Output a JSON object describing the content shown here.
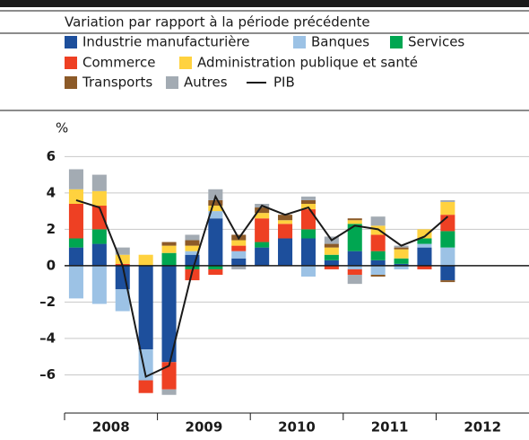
{
  "chart_data": {
    "type": "bar",
    "subtitle": "Variation par rapport à la période précédente",
    "y_unit": "%",
    "stacked": true,
    "categories": [
      null,
      null,
      null,
      null,
      null,
      null,
      null,
      null,
      null,
      null,
      null,
      null,
      null,
      null,
      null,
      null,
      null,
      null,
      null,
      null
    ],
    "year_labels": [
      "2008",
      "2009",
      "2010",
      "2011",
      "2012"
    ],
    "series": [
      {
        "name": "Industrie manufacturière",
        "color": "#1d4f9c",
        "values": [
          1.0,
          1.2,
          -1.3,
          -4.6,
          -5.3,
          0.6,
          2.6,
          0.4,
          1.0,
          1.5,
          1.5,
          0.3,
          0.8,
          0.3,
          0.1,
          1.0,
          -0.8,
          null,
          null,
          null
        ]
      },
      {
        "name": "Banques",
        "color": "#9cc2e5",
        "values": [
          -1.8,
          -2.1,
          -1.2,
          -1.7,
          0,
          0.2,
          0.4,
          0.4,
          0,
          0,
          -0.6,
          0,
          -0.2,
          -0.5,
          -0.2,
          0.2,
          1.0,
          null,
          null,
          null
        ]
      },
      {
        "name": "Services",
        "color": "#00a651",
        "values": [
          0.5,
          0.8,
          0,
          0,
          0.7,
          -0.2,
          -0.2,
          0,
          0.3,
          0,
          0.5,
          0.3,
          1.5,
          0.5,
          0.3,
          0.3,
          0.9,
          null,
          null,
          null
        ]
      },
      {
        "name": "Commerce",
        "color": "#ee4023",
        "values": [
          1.9,
          1.3,
          0.1,
          -0.7,
          -1.5,
          -0.6,
          -0.3,
          0.3,
          1.3,
          0.8,
          1.1,
          -0.2,
          -0.3,
          0.9,
          0,
          -0.2,
          0.9,
          null,
          null,
          null
        ]
      },
      {
        "name": "Administration publique et santé",
        "color": "#ffd23f",
        "values": [
          0.8,
          0.8,
          0.5,
          0.6,
          0.4,
          0.3,
          0.3,
          0.3,
          0.3,
          0.2,
          0.3,
          0.4,
          0.2,
          0.5,
          0.5,
          0.5,
          0.7,
          null,
          null,
          null
        ]
      },
      {
        "name": "Transports",
        "color": "#8c5a28",
        "values": [
          0,
          0,
          0,
          0,
          0.2,
          0.3,
          0.3,
          0.3,
          0.3,
          0.3,
          0.2,
          0.2,
          0.1,
          -0.1,
          0.1,
          0,
          -0.1,
          null,
          null,
          null
        ]
      },
      {
        "name": "Autres",
        "color": "#a3abb3",
        "values": [
          1.1,
          0.9,
          0.4,
          0,
          -0.3,
          0.3,
          0.6,
          -0.2,
          0.2,
          0,
          0.2,
          0.4,
          -0.5,
          0.5,
          0.1,
          0,
          0.1,
          null,
          null,
          null
        ]
      },
      {
        "name": "PIB",
        "type": "line",
        "color": "#1a1a1a",
        "values": [
          3.6,
          3.2,
          0.0,
          -6.1,
          -5.5,
          -0.3,
          3.8,
          1.5,
          3.3,
          2.8,
          3.2,
          1.4,
          2.2,
          2.0,
          1.1,
          1.6,
          2.7,
          null,
          null,
          null
        ]
      }
    ],
    "ylim": [
      -8.1,
      7.2
    ],
    "yticks": [
      6,
      4,
      2,
      0,
      {
        "value": -2,
        "label": "–2"
      },
      {
        "value": -4,
        "label": "–4"
      },
      {
        "value": -6,
        "label": "–6"
      }
    ],
    "grid": true
  }
}
